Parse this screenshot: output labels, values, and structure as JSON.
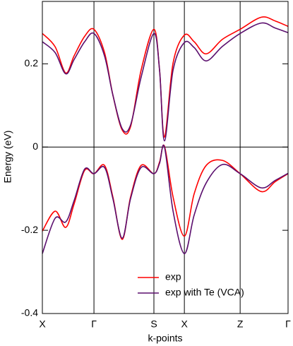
{
  "chart_data": {
    "type": "line",
    "xlabel": "k-points",
    "ylabel": "Energy (eV)",
    "x": [
      0,
      0.052,
      0.095,
      0.129,
      0.172,
      0.21,
      0.253,
      0.287,
      0.325,
      0.359,
      0.402,
      0.454,
      0.477,
      0.497,
      0.532,
      0.578,
      0.618,
      0.667,
      0.733,
      0.805,
      0.891,
      0.948,
      1
    ],
    "xlim": [
      0,
      1
    ],
    "xticks": [
      {
        "value": 0,
        "label": "X"
      },
      {
        "value": 0.21,
        "label": "Γ"
      },
      {
        "value": 0.454,
        "label": "S"
      },
      {
        "value": 0.578,
        "label": "X"
      },
      {
        "value": 0.805,
        "label": "Z"
      },
      {
        "value": 1,
        "label": "Γ"
      }
    ],
    "ylim": [
      -0.4,
      0.35
    ],
    "yticks": [
      -0.4,
      -0.2,
      0,
      0.2
    ],
    "grid": "x",
    "zero_line": true,
    "legend": "lower center",
    "series": [
      {
        "name": "exp",
        "color": "#ff0000",
        "bands": [
          [
            0.273,
            0.241,
            0.178,
            0.219,
            0.266,
            0.283,
            0.227,
            0.125,
            0.041,
            0.049,
            0.185,
            0.283,
            0.185,
            0.024,
            0.202,
            0.269,
            0.253,
            0.224,
            0.259,
            0.283,
            0.312,
            0.303,
            0.29
          ],
          [
            -0.202,
            -0.154,
            -0.193,
            -0.137,
            -0.056,
            -0.064,
            -0.044,
            -0.12,
            -0.222,
            -0.12,
            -0.044,
            -0.064,
            -0.036,
            0.002,
            -0.12,
            -0.214,
            -0.112,
            -0.044,
            -0.032,
            -0.064,
            -0.107,
            -0.083,
            -0.064
          ]
        ]
      },
      {
        "name": "exp with Te (VCA)",
        "color": "#5b0f6e",
        "bands": [
          [
            0.253,
            0.227,
            0.176,
            0.21,
            0.253,
            0.273,
            0.219,
            0.125,
            0.044,
            0.053,
            0.168,
            0.273,
            0.185,
            0.015,
            0.185,
            0.251,
            0.239,
            0.207,
            0.242,
            0.273,
            0.298,
            0.286,
            0.275
          ],
          [
            -0.256,
            -0.171,
            -0.18,
            -0.129,
            -0.053,
            -0.064,
            -0.049,
            -0.124,
            -0.219,
            -0.124,
            -0.049,
            -0.064,
            -0.039,
            0,
            -0.154,
            -0.256,
            -0.163,
            -0.086,
            -0.042,
            -0.064,
            -0.098,
            -0.08,
            -0.063
          ]
        ]
      }
    ]
  }
}
